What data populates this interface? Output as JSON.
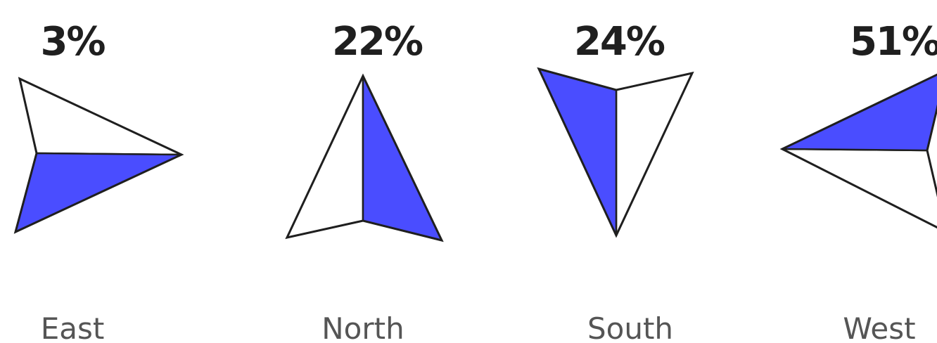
{
  "chart_data": {
    "type": "pictograph-arrows",
    "categories": [
      "East",
      "North",
      "South",
      "West"
    ],
    "values": [
      3,
      22,
      24,
      51
    ],
    "value_labels": [
      "3%",
      "22%",
      "24%",
      "51%"
    ],
    "unit": "%",
    "colors": {
      "fill": "#4a4dff",
      "blank": "#ffffff",
      "stroke": "#1f1f1f",
      "value_text": "#1f1f1f",
      "category_text": "#555555"
    }
  }
}
